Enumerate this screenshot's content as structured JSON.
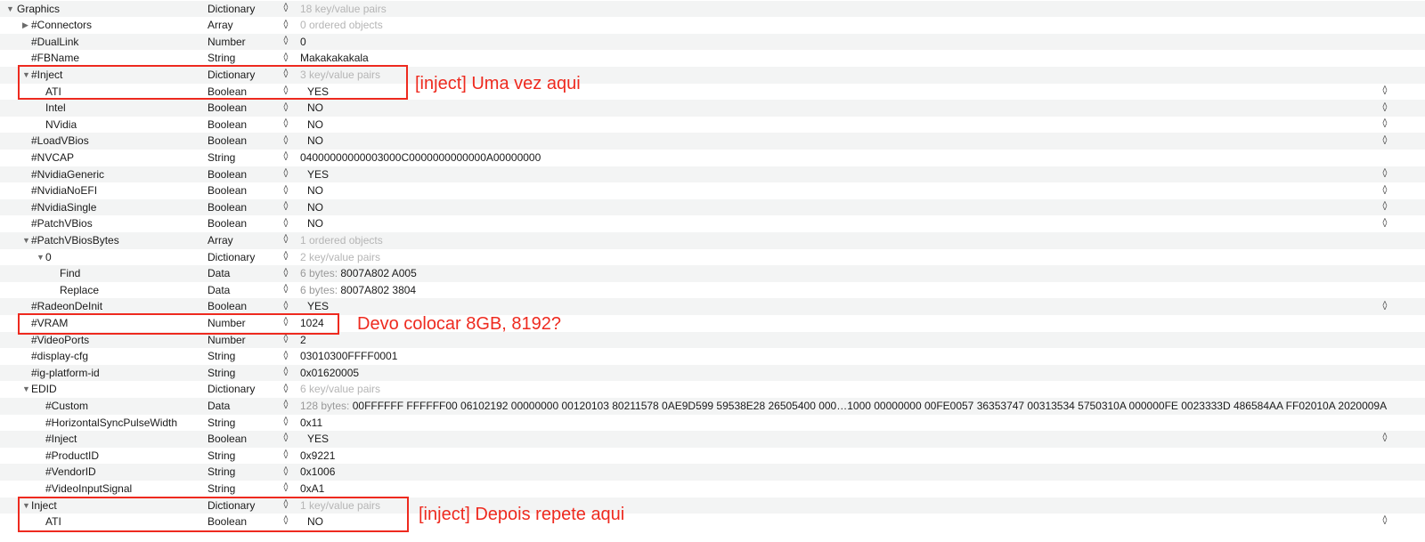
{
  "rows": [
    {
      "key": "Graphics",
      "type": "Dictionary",
      "value": "18 key/value pairs",
      "level": 0,
      "disc": "open",
      "dim": true
    },
    {
      "key": "#Connectors",
      "type": "Array",
      "value": "0 ordered objects",
      "level": 1,
      "disc": "closed",
      "dim": true
    },
    {
      "key": "#DualLink",
      "type": "Number",
      "value": "0",
      "level": 1
    },
    {
      "key": "#FBName",
      "type": "String",
      "value": "Makakakakala",
      "level": 1
    },
    {
      "key": "#Inject",
      "type": "Dictionary",
      "value": "3 key/value pairs",
      "level": 1,
      "disc": "open",
      "dim": true
    },
    {
      "key": "ATI",
      "type": "Boolean",
      "value": "YES",
      "level": 2,
      "bool": true
    },
    {
      "key": "Intel",
      "type": "Boolean",
      "value": "NO",
      "level": 2,
      "bool": true
    },
    {
      "key": "NVidia",
      "type": "Boolean",
      "value": "NO",
      "level": 2,
      "bool": true
    },
    {
      "key": "#LoadVBios",
      "type": "Boolean",
      "value": "NO",
      "level": 1,
      "bool": true
    },
    {
      "key": "#NVCAP",
      "type": "String",
      "value": "04000000000003000C0000000000000A00000000",
      "level": 1
    },
    {
      "key": "#NvidiaGeneric",
      "type": "Boolean",
      "value": "YES",
      "level": 1,
      "bool": true
    },
    {
      "key": "#NvidiaNoEFI",
      "type": "Boolean",
      "value": "NO",
      "level": 1,
      "bool": true
    },
    {
      "key": "#NvidiaSingle",
      "type": "Boolean",
      "value": "NO",
      "level": 1,
      "bool": true
    },
    {
      "key": "#PatchVBios",
      "type": "Boolean",
      "value": "NO",
      "level": 1,
      "bool": true
    },
    {
      "key": "#PatchVBiosBytes",
      "type": "Array",
      "value": "1 ordered objects",
      "level": 1,
      "disc": "open",
      "dim": true
    },
    {
      "key": "0",
      "type": "Dictionary",
      "value": "2 key/value pairs",
      "level": 2,
      "disc": "open",
      "dim": true
    },
    {
      "key": "Find",
      "type": "Data",
      "prefix": "6 bytes: ",
      "value": "8007A802 A005",
      "level": 3
    },
    {
      "key": "Replace",
      "type": "Data",
      "prefix": "6 bytes: ",
      "value": "8007A802 3804",
      "level": 3
    },
    {
      "key": "#RadeonDeInit",
      "type": "Boolean",
      "value": "YES",
      "level": 1,
      "bool": true
    },
    {
      "key": "#VRAM",
      "type": "Number",
      "value": "1024",
      "level": 1
    },
    {
      "key": "#VideoPorts",
      "type": "Number",
      "value": "2",
      "level": 1
    },
    {
      "key": "#display-cfg",
      "type": "String",
      "value": "03010300FFFF0001",
      "level": 1
    },
    {
      "key": "#ig-platform-id",
      "type": "String",
      "value": "0x01620005",
      "level": 1
    },
    {
      "key": "EDID",
      "type": "Dictionary",
      "value": "6 key/value pairs",
      "level": 1,
      "disc": "open",
      "dim": true
    },
    {
      "key": "#Custom",
      "type": "Data",
      "prefix": "128 bytes: ",
      "value": "00FFFFFF FFFFFF00 06102192 00000000 00120103 80211578 0AE9D599 59538E28 26505400 000…1000 00000000 00FE0057 36353747 00313534 5750310A 000000FE 0023333D 486584AA FF02010A 2020009A",
      "level": 2
    },
    {
      "key": "#HorizontalSyncPulseWidth",
      "type": "String",
      "value": "0x11",
      "level": 2
    },
    {
      "key": "#Inject",
      "type": "Boolean",
      "value": "YES",
      "level": 2,
      "bool": true
    },
    {
      "key": "#ProductID",
      "type": "String",
      "value": "0x9221",
      "level": 2
    },
    {
      "key": "#VendorID",
      "type": "String",
      "value": "0x1006",
      "level": 2
    },
    {
      "key": "#VideoInputSignal",
      "type": "String",
      "value": "0xA1",
      "level": 2
    },
    {
      "key": "Inject",
      "type": "Dictionary",
      "value": "1 key/value pairs",
      "level": 1,
      "disc": "open",
      "dim": true
    },
    {
      "key": "ATI",
      "type": "Boolean",
      "value": "NO",
      "level": 2,
      "bool": true
    }
  ],
  "annotations": {
    "note1": "[inject] Uma vez aqui",
    "note2": "Devo colocar 8GB, 8192?",
    "note3": "[inject] Depois repete aqui",
    "color": "#ee2a1f"
  },
  "icons": {
    "open": "disclosure-triangle-open",
    "closed": "disclosure-triangle-closed",
    "stepper": "up-down-stepper"
  }
}
